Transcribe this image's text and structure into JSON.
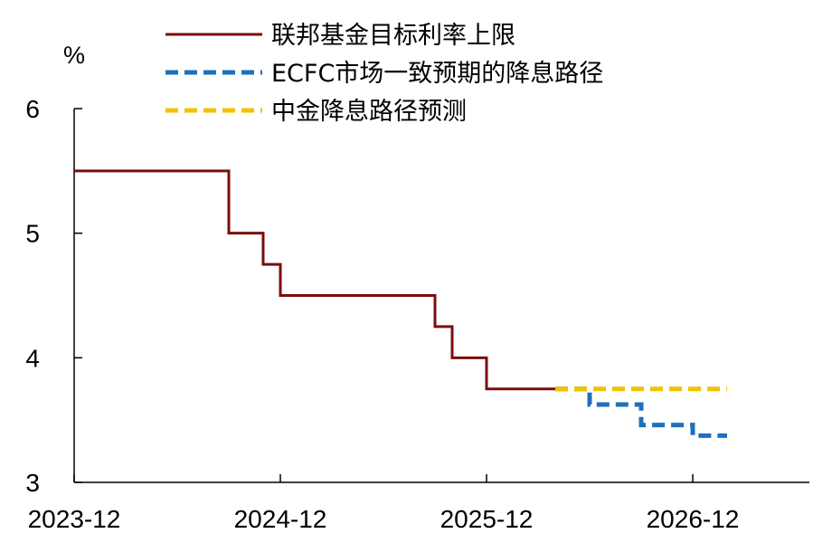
{
  "chart_data": {
    "type": "line",
    "y_unit": "%",
    "ylim": [
      3,
      6
    ],
    "yticks": [
      3,
      4,
      5,
      6
    ],
    "xlim": [
      "2023-12",
      "2027-03"
    ],
    "x_ticks": [
      "2023-12",
      "2024-12",
      "2025-12",
      "2026-12"
    ],
    "grid": false,
    "legend_position": "top",
    "series": [
      {
        "name": "联邦基金目标利率上限",
        "color": "#7b0d0d",
        "style": "solid",
        "step": true,
        "points": [
          {
            "x": "2023-12",
            "y": 5.5
          },
          {
            "x": "2024-09",
            "y": 5.0
          },
          {
            "x": "2024-11",
            "y": 4.75
          },
          {
            "x": "2024-12",
            "y": 4.5
          },
          {
            "x": "2025-09",
            "y": 4.25
          },
          {
            "x": "2025-10",
            "y": 4.0
          },
          {
            "x": "2025-12",
            "y": 3.75
          },
          {
            "x": "2026-04",
            "y": 3.75
          }
        ]
      },
      {
        "name": "ECFC市场一致预期的降息路径",
        "color": "#1f6fbf",
        "style": "dashed",
        "step": true,
        "points": [
          {
            "x": "2026-04",
            "y": 3.75
          },
          {
            "x": "2026-06",
            "y": 3.625
          },
          {
            "x": "2026-09",
            "y": 3.46
          },
          {
            "x": "2026-12",
            "y": 3.375
          },
          {
            "x": "2027-02",
            "y": 3.375
          }
        ]
      },
      {
        "name": "中金降息路径预测",
        "color": "#f2c200",
        "style": "dashed",
        "step": false,
        "points": [
          {
            "x": "2026-04",
            "y": 3.75
          },
          {
            "x": "2027-02",
            "y": 3.75
          }
        ]
      }
    ]
  }
}
